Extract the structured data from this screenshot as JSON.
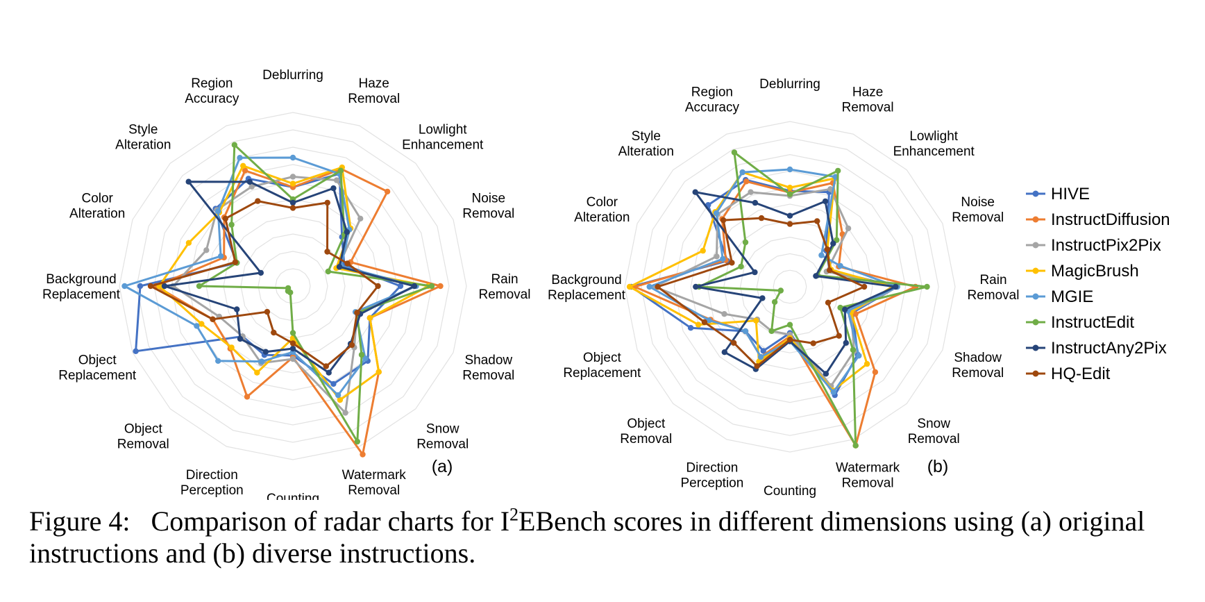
{
  "categories": [
    [
      "Deblurring"
    ],
    [
      "Haze",
      "Removal"
    ],
    [
      "Lowlight",
      "Enhancement"
    ],
    [
      "Noise",
      "Removal"
    ],
    [
      "Rain",
      "Removal"
    ],
    [
      "Shadow",
      "Removal"
    ],
    [
      "Snow",
      "Removal"
    ],
    [
      "Watermark",
      "Removal"
    ],
    [
      "Counting"
    ],
    [
      "Direction",
      "Perception"
    ],
    [
      "Object",
      "Removal"
    ],
    [
      "Object",
      "Replacement"
    ],
    [
      "Background",
      "Replacement"
    ],
    [
      "Color",
      "Alteration"
    ],
    [
      "Style",
      "Alteration"
    ],
    [
      "Region",
      "Accuracy"
    ]
  ],
  "legend_entries": [
    "HIVE",
    "InstructDiffusion",
    "InstructPix2Pix",
    "MagicBrush",
    "MGIE",
    "InstructEdit",
    "InstructAny2Pix",
    "HQ-Edit"
  ],
  "caption": {
    "prefix": "Figure 4:",
    "text_before_sup": "Comparison of radar charts for I",
    "sup": "2",
    "text_after_sup": "EBench scores in different dimensions using (a) original instructions and (b) diverse instructions."
  },
  "chart_data": [
    {
      "type": "radar",
      "label": "(a)",
      "rlim": [
        0,
        1
      ],
      "grid": true,
      "legend": "none",
      "categories": [
        "Deblurring",
        "Haze Removal",
        "Lowlight Enhancement",
        "Noise Removal",
        "Rain Removal",
        "Shadow Removal",
        "Snow Removal",
        "Watermark Removal",
        "Counting",
        "Direction Perception",
        "Object Removal",
        "Object Replacement",
        "Background Replacement",
        "Color Alteration",
        "Style Alteration",
        "Region Accuracy"
      ],
      "series": [
        {
          "name": "HIVE",
          "color": "#4472c4",
          "values": [
            0.57,
            0.7,
            0.4,
            0.32,
            0.62,
            0.48,
            0.61,
            0.61,
            0.4,
            0.43,
            0.41,
            0.98,
            0.88,
            0.35,
            0.63,
            0.67
          ]
        },
        {
          "name": "InstructDiffusion",
          "color": "#ed7d31",
          "values": [
            0.57,
            0.73,
            0.77,
            0.36,
            0.85,
            0.48,
            0.7,
            1.05,
            0.41,
            0.69,
            0.51,
            0.5,
            0.79,
            0.43,
            0.56,
            0.72
          ]
        },
        {
          "name": "InstructPix2Pix",
          "color": "#a5a5a5",
          "values": [
            0.63,
            0.66,
            0.55,
            0.28,
            0.71,
            0.4,
            0.5,
            0.79,
            0.42,
            0.48,
            0.41,
            0.46,
            0.69,
            0.54,
            0.62,
            0.62
          ]
        },
        {
          "name": "MagicBrush",
          "color": "#ffc000",
          "values": [
            0.59,
            0.74,
            0.47,
            0.27,
            0.78,
            0.48,
            0.7,
            0.71,
            0.3,
            0.54,
            0.5,
            0.57,
            0.77,
            0.65,
            0.6,
            0.75
          ]
        },
        {
          "name": "MGIE",
          "color": "#5b9bd5",
          "values": [
            0.74,
            0.7,
            0.46,
            0.3,
            0.71,
            0.39,
            0.59,
            0.68,
            0.38,
            0.47,
            0.61,
            0.6,
            0.97,
            0.45,
            0.61,
            0.8
          ]
        },
        {
          "name": "InstructEdit",
          "color": "#70ad47",
          "values": [
            0.5,
            0.72,
            0.42,
            0.22,
            0.8,
            0.4,
            0.56,
            0.97,
            0.27,
            0.04,
            0.04,
            0.03,
            0.54,
            0.35,
            0.5,
            0.88
          ]
        },
        {
          "name": "InstructAny2Pix",
          "color": "#264478",
          "values": [
            0.48,
            0.61,
            0.44,
            0.29,
            0.7,
            0.42,
            0.47,
            0.54,
            0.36,
            0.41,
            0.43,
            0.35,
            0.74,
            0.2,
            0.85,
            0.65
          ]
        },
        {
          "name": "HQ-Edit",
          "color": "#9e480e",
          "values": [
            0.45,
            0.52,
            0.28,
            0.34,
            0.49,
            0.4,
            0.48,
            0.5,
            0.33,
            0.29,
            0.21,
            0.5,
            0.82,
            0.36,
            0.55,
            0.53
          ]
        }
      ]
    },
    {
      "type": "radar",
      "label": "(b)",
      "rlim": [
        0,
        1
      ],
      "grid": true,
      "legend": "right",
      "categories": [
        "Deblurring",
        "Haze Removal",
        "Lowlight Enhancement",
        "Noise Removal",
        "Rain Removal",
        "Shadow Removal",
        "Snow Removal",
        "Watermark Removal",
        "Counting",
        "Direction Perception",
        "Object Removal",
        "Object Replacement",
        "Background Replacement",
        "Color Alteration",
        "Style Alteration",
        "Region Accuracy"
      ],
      "series": [
        {
          "name": "HIVE",
          "color": "#4472c4",
          "values": [
            0.58,
            0.62,
            0.31,
            0.26,
            0.65,
            0.41,
            0.58,
            0.71,
            0.28,
            0.42,
            0.38,
            0.65,
            0.96,
            0.41,
            0.7,
            0.7
          ]
        },
        {
          "name": "InstructDiffusion",
          "color": "#ed7d31",
          "values": [
            0.57,
            0.68,
            0.45,
            0.32,
            0.76,
            0.43,
            0.73,
            1.04,
            0.3,
            0.46,
            0.38,
            0.52,
            0.94,
            0.42,
            0.58,
            0.69
          ]
        },
        {
          "name": "InstructPix2Pix",
          "color": "#a5a5a5",
          "values": [
            0.55,
            0.64,
            0.5,
            0.24,
            0.65,
            0.4,
            0.55,
            0.65,
            0.29,
            0.29,
            0.28,
            0.43,
            0.82,
            0.48,
            0.62,
            0.62
          ]
        },
        {
          "name": "MagicBrush",
          "color": "#ffc000",
          "values": [
            0.6,
            0.71,
            0.32,
            0.27,
            0.62,
            0.4,
            0.66,
            0.68,
            0.31,
            0.49,
            0.29,
            0.6,
            0.97,
            0.57,
            0.64,
            0.75
          ]
        },
        {
          "name": "MGIE",
          "color": "#5b9bd5",
          "values": [
            0.71,
            0.72,
            0.27,
            0.33,
            0.65,
            0.38,
            0.59,
            0.69,
            0.33,
            0.46,
            0.38,
            0.53,
            0.85,
            0.44,
            0.63,
            0.75
          ]
        },
        {
          "name": "InstructEdit",
          "color": "#70ad47",
          "values": [
            0.56,
            0.76,
            0.4,
            0.18,
            0.83,
            0.33,
            0.54,
            1.04,
            0.23,
            0.29,
            0.13,
            0.06,
            0.55,
            0.32,
            0.38,
            0.88
          ]
        },
        {
          "name": "InstructAny2Pix",
          "color": "#264478",
          "values": [
            0.43,
            0.56,
            0.37,
            0.17,
            0.64,
            0.36,
            0.48,
            0.57,
            0.33,
            0.54,
            0.56,
            0.18,
            0.57,
            0.23,
            0.81,
            0.55
          ]
        },
        {
          "name": "HQ-Edit",
          "color": "#9e480e",
          "values": [
            0.38,
            0.43,
            0.32,
            0.26,
            0.45,
            0.25,
            0.42,
            0.37,
            0.32,
            0.52,
            0.48,
            0.56,
            0.8,
            0.38,
            0.57,
            0.45
          ]
        }
      ]
    }
  ]
}
